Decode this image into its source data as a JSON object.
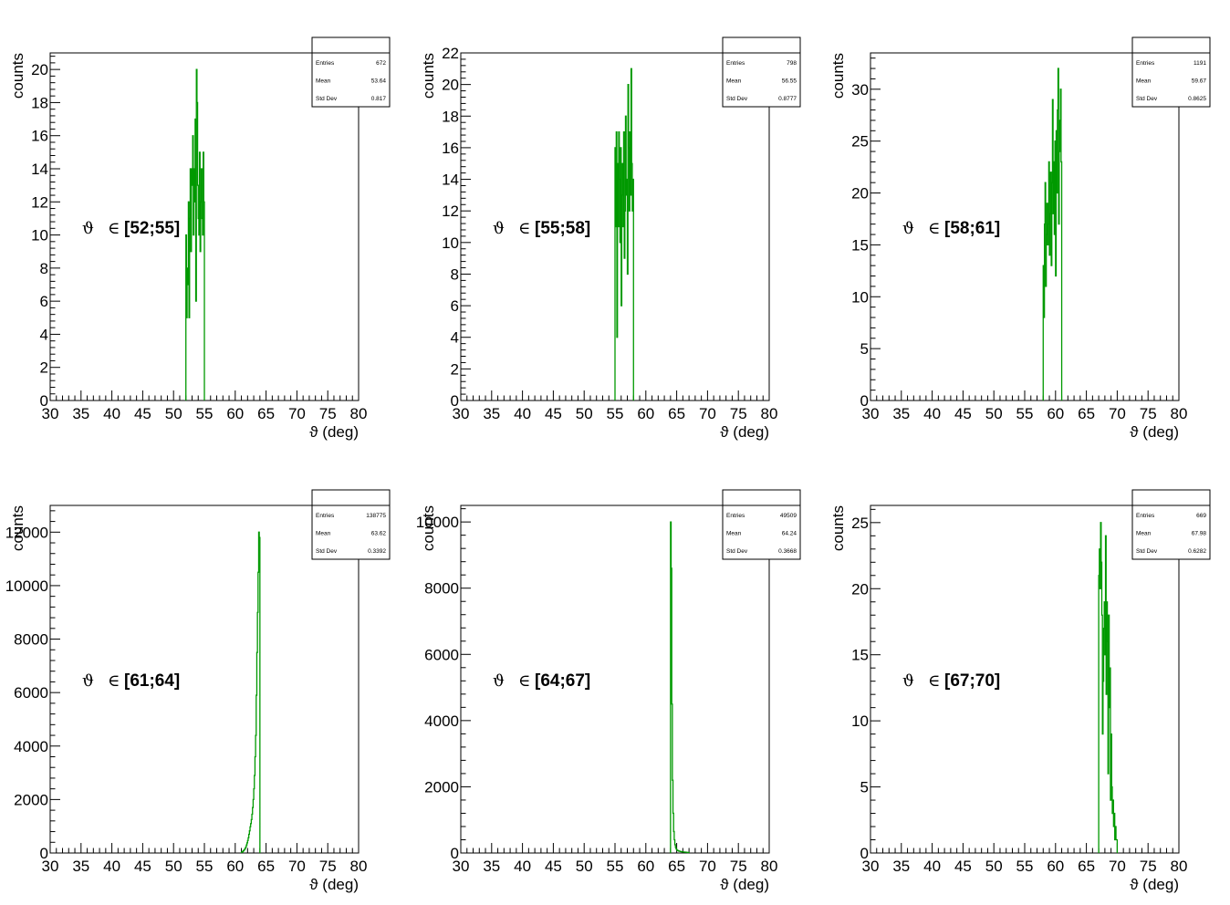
{
  "colors": {
    "histogram": "#009900",
    "frame": "#000000",
    "background": "#ffffff"
  },
  "chart_data": [
    {
      "type": "histogram",
      "xlabel": "ϑ (deg)",
      "ylabel": "counts",
      "xlim": [
        30,
        80
      ],
      "ylim": [
        0,
        21
      ],
      "x_ticks": [
        30,
        35,
        40,
        45,
        50,
        55,
        60,
        65,
        70,
        75,
        80
      ],
      "y_ticks": [
        0,
        2,
        4,
        6,
        8,
        10,
        12,
        14,
        16,
        18,
        20
      ],
      "annotation": {
        "symbol": "ϑ",
        "element_of": "∈",
        "range": "[52;55]"
      },
      "stats": {
        "entries_label": "Entries",
        "entries": "672",
        "mean_label": "Mean",
        "mean": "53.64",
        "std_label": "Std Dev",
        "std": "0.817"
      },
      "bin_width": 0.1,
      "x": [
        52.0,
        52.1,
        52.2,
        52.3,
        52.4,
        52.5,
        52.6,
        52.7,
        52.8,
        52.9,
        53.0,
        53.1,
        53.2,
        53.3,
        53.4,
        53.5,
        53.6,
        53.7,
        53.8,
        53.9,
        54.0,
        54.1,
        54.2,
        54.3,
        54.4,
        54.5,
        54.6,
        54.7,
        54.8,
        54.9
      ],
      "values": [
        10,
        5,
        8,
        7,
        12,
        5,
        11,
        14,
        9,
        14,
        13,
        16,
        10,
        14,
        12,
        17,
        6,
        20,
        18,
        13,
        11,
        10,
        15,
        9,
        12,
        14,
        11,
        10,
        15,
        12
      ]
    },
    {
      "type": "histogram",
      "xlabel": "ϑ (deg)",
      "ylabel": "counts",
      "xlim": [
        30,
        80
      ],
      "ylim": [
        0,
        22
      ],
      "x_ticks": [
        30,
        35,
        40,
        45,
        50,
        55,
        60,
        65,
        70,
        75,
        80
      ],
      "y_ticks": [
        0,
        2,
        4,
        6,
        8,
        10,
        12,
        14,
        16,
        18,
        20,
        22
      ],
      "annotation": {
        "symbol": "ϑ",
        "element_of": "∈",
        "range": "[55;58]"
      },
      "stats": {
        "entries_label": "Entries",
        "entries": "798",
        "mean_label": "Mean",
        "mean": "56.55",
        "std_label": "Std Dev",
        "std": "0.8777"
      },
      "bin_width": 0.1,
      "x": [
        55.0,
        55.1,
        55.2,
        55.3,
        55.4,
        55.5,
        55.6,
        55.7,
        55.8,
        55.9,
        56.0,
        56.1,
        56.2,
        56.3,
        56.4,
        56.5,
        56.6,
        56.7,
        56.8,
        56.9,
        57.0,
        57.1,
        57.2,
        57.3,
        57.4,
        57.5,
        57.6,
        57.7,
        57.8,
        57.9
      ],
      "values": [
        16,
        11,
        17,
        4,
        15,
        11,
        17,
        14,
        10,
        16,
        6,
        13,
        15,
        11,
        17,
        9,
        12,
        18,
        13,
        14,
        8,
        20,
        16,
        12,
        17,
        13,
        21,
        15,
        12,
        14
      ]
    },
    {
      "type": "histogram",
      "xlabel": "ϑ (deg)",
      "ylabel": "counts",
      "xlim": [
        30,
        80
      ],
      "ylim": [
        0,
        33.5
      ],
      "x_ticks": [
        30,
        35,
        40,
        45,
        50,
        55,
        60,
        65,
        70,
        75,
        80
      ],
      "y_ticks": [
        0,
        5,
        10,
        15,
        20,
        25,
        30
      ],
      "annotation": {
        "symbol": "ϑ",
        "element_of": "∈",
        "range": "[58;61]"
      },
      "stats": {
        "entries_label": "Entries",
        "entries": "1191",
        "mean_label": "Mean",
        "mean": "59.67",
        "std_label": "Std Dev",
        "std": "0.8625"
      },
      "bin_width": 0.1,
      "x": [
        58.0,
        58.1,
        58.2,
        58.3,
        58.4,
        58.5,
        58.6,
        58.7,
        58.8,
        58.9,
        59.0,
        59.1,
        59.2,
        59.3,
        59.4,
        59.5,
        59.6,
        59.7,
        59.8,
        59.9,
        60.0,
        60.1,
        60.2,
        60.3,
        60.4,
        60.5,
        60.6,
        60.7,
        60.8,
        60.9
      ],
      "values": [
        13,
        8,
        17,
        21,
        11,
        16,
        19,
        15,
        17,
        23,
        14,
        18,
        22,
        13,
        21,
        29,
        18,
        23,
        16,
        25,
        12,
        26,
        20,
        28,
        32,
        17,
        24,
        27,
        30,
        23
      ]
    },
    {
      "type": "histogram",
      "xlabel": "ϑ (deg)",
      "ylabel": "counts",
      "xlim": [
        30,
        80
      ],
      "ylim": [
        0,
        13000
      ],
      "x_ticks": [
        30,
        35,
        40,
        45,
        50,
        55,
        60,
        65,
        70,
        75,
        80
      ],
      "y_ticks": [
        0,
        2000,
        4000,
        6000,
        8000,
        10000,
        12000
      ],
      "annotation": {
        "symbol": "ϑ",
        "element_of": "∈",
        "range": "[61;64]"
      },
      "stats": {
        "entries_label": "Entries",
        "entries": "138775",
        "mean_label": "Mean",
        "mean": "63.62",
        "std_label": "Std Dev",
        "std": "0.3392"
      },
      "bin_width": 0.1,
      "x": [
        61.0,
        61.1,
        61.2,
        61.3,
        61.4,
        61.5,
        61.6,
        61.7,
        61.8,
        61.9,
        62.0,
        62.1,
        62.2,
        62.3,
        62.4,
        62.5,
        62.6,
        62.7,
        62.8,
        62.9,
        63.0,
        63.1,
        63.2,
        63.3,
        63.4,
        63.5,
        63.6,
        63.7,
        63.8,
        63.9
      ],
      "values": [
        30,
        40,
        60,
        80,
        110,
        140,
        180,
        230,
        300,
        380,
        470,
        570,
        700,
        830,
        980,
        1100,
        1250,
        1450,
        1700,
        2000,
        2400,
        2900,
        3600,
        4400,
        5900,
        7500,
        9000,
        10500,
        12000,
        11800
      ]
    },
    {
      "type": "histogram",
      "xlabel": "ϑ (deg)",
      "ylabel": "counts",
      "xlim": [
        30,
        80
      ],
      "ylim": [
        0,
        10500
      ],
      "x_ticks": [
        30,
        35,
        40,
        45,
        50,
        55,
        60,
        65,
        70,
        75,
        80
      ],
      "y_ticks": [
        0,
        2000,
        4000,
        6000,
        8000,
        10000
      ],
      "annotation": {
        "symbol": "ϑ",
        "element_of": "∈",
        "range": "[64;67]"
      },
      "stats": {
        "entries_label": "Entries",
        "entries": "49509",
        "mean_label": "Mean",
        "mean": "64.24",
        "std_label": "Std Dev",
        "std": "0.3668"
      },
      "bin_width": 0.1,
      "x": [
        64.0,
        64.1,
        64.2,
        64.3,
        64.4,
        64.5,
        64.6,
        64.7,
        64.8,
        64.9,
        65.0,
        65.1,
        65.2,
        65.3,
        65.4,
        65.5,
        65.6,
        65.7,
        65.8,
        65.9,
        66.0,
        66.1,
        66.2,
        66.3,
        66.4,
        66.5,
        66.6,
        66.7,
        66.8,
        66.9
      ],
      "values": [
        10000,
        8600,
        4500,
        2200,
        1200,
        650,
        400,
        250,
        170,
        120,
        90,
        80,
        70,
        60,
        55,
        50,
        45,
        40,
        38,
        35,
        32,
        30,
        28,
        26,
        24,
        22,
        20,
        18,
        16,
        14
      ]
    },
    {
      "type": "histogram",
      "xlabel": "ϑ (deg)",
      "ylabel": "counts",
      "xlim": [
        30,
        80
      ],
      "ylim": [
        0,
        26.3
      ],
      "x_ticks": [
        30,
        35,
        40,
        45,
        50,
        55,
        60,
        65,
        70,
        75,
        80
      ],
      "y_ticks": [
        0,
        5,
        10,
        15,
        20,
        25
      ],
      "annotation": {
        "symbol": "ϑ",
        "element_of": "∈",
        "range": "[67;70]"
      },
      "stats": {
        "entries_label": "Entries",
        "entries": "669",
        "mean_label": "Mean",
        "mean": "67.98",
        "std_label": "Std Dev",
        "std": "0.6282"
      },
      "bin_width": 0.1,
      "x": [
        67.0,
        67.1,
        67.2,
        67.3,
        67.4,
        67.5,
        67.6,
        67.7,
        67.8,
        67.9,
        68.0,
        68.1,
        68.2,
        68.3,
        68.4,
        68.5,
        68.6,
        68.7,
        68.8,
        68.9,
        69.0,
        69.1,
        69.2,
        69.3,
        69.4,
        69.5,
        69.6,
        69.7,
        69.8,
        69.9
      ],
      "values": [
        21,
        23,
        20,
        25,
        22,
        18,
        9,
        13,
        17,
        19,
        15,
        24,
        12,
        19,
        16,
        6,
        18,
        11,
        14,
        4,
        9,
        5,
        3,
        4,
        2,
        3,
        1,
        2,
        1,
        1
      ]
    }
  ]
}
